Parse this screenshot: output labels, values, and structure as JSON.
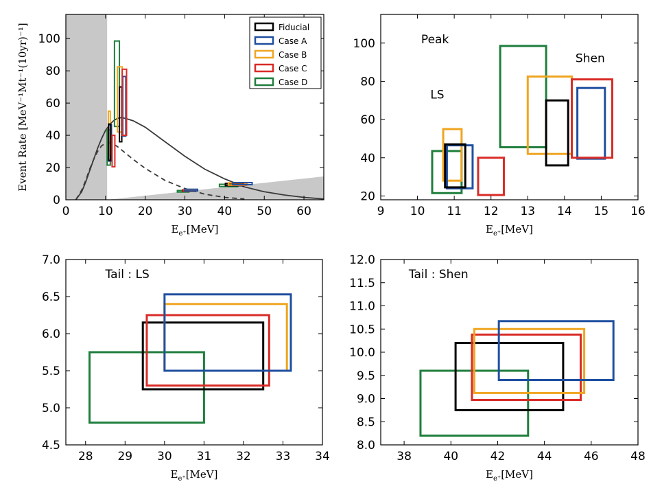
{
  "colors": {
    "Fiducial": "#000000",
    "Case A": "#1f4fa0",
    "Case B": "#f0a520",
    "Case C": "#d92b26",
    "Case D": "#1e7e3c",
    "shade": "#c8c8c8"
  },
  "chart_data": [
    {
      "id": "spectrum",
      "type": "line",
      "xlabel": "E_{e⁺}[MeV]",
      "ylabel": "Event Rate [MeV⁻¹Mt⁻¹(10yr)⁻¹]",
      "xlim": [
        0,
        65
      ],
      "ylim": [
        0,
        115
      ],
      "xticks": [
        0,
        10,
        20,
        30,
        40,
        50,
        60
      ],
      "yticks": [
        0,
        20,
        40,
        60,
        80,
        100
      ],
      "legend_position": "top-right",
      "legend": [
        "Fiducial",
        "Case A",
        "Case B",
        "Case C",
        "Case D"
      ],
      "shaded_regions": [
        {
          "x": [
            0,
            10.4
          ],
          "y_top": [
            115,
            115
          ]
        },
        {
          "x": [
            10.4,
            65
          ],
          "y_top": [
            0,
            14.5
          ]
        }
      ],
      "series": [
        {
          "style": "solid",
          "x": [
            2.5,
            4,
            5,
            6,
            7,
            8,
            9,
            10,
            11,
            12,
            13,
            14,
            15,
            17,
            20,
            25,
            30,
            35,
            40,
            45,
            50,
            55,
            60,
            65
          ],
          "y": [
            0,
            5,
            11,
            18,
            25,
            32,
            38,
            43,
            46.5,
            49,
            50.5,
            51,
            50.5,
            49,
            45,
            36,
            27,
            19,
            13,
            8,
            5,
            3,
            1.5,
            0.5
          ]
        },
        {
          "style": "dashed",
          "x": [
            2.5,
            4,
            5,
            6,
            7,
            8,
            9,
            10,
            11,
            12,
            13,
            14,
            15,
            17,
            20,
            25,
            30,
            35,
            40,
            45
          ],
          "y": [
            0,
            6,
            12,
            19,
            25,
            30,
            33.5,
            35,
            35.5,
            34.5,
            33,
            31,
            29,
            25,
            19.5,
            12,
            7,
            3.5,
            1.5,
            0.5
          ]
        }
      ],
      "boxes": [
        {
          "case": "Case D",
          "x": [
            10.4,
            11.2
          ],
          "y": [
            21.5,
            43.5
          ]
        },
        {
          "case": "Case B",
          "x": [
            10.7,
            11.2
          ],
          "y": [
            28,
            55
          ]
        },
        {
          "case": "Case A",
          "x": [
            10.8,
            11.5
          ],
          "y": [
            24,
            46.5
          ]
        },
        {
          "case": "Fiducial",
          "x": [
            10.75,
            11.3
          ],
          "y": [
            24.5,
            47
          ]
        },
        {
          "case": "Case C",
          "x": [
            11.65,
            12.35
          ],
          "y": [
            20.5,
            40
          ]
        },
        {
          "case": "Case D",
          "x": [
            12.25,
            13.5
          ],
          "y": [
            45.5,
            98.5
          ]
        },
        {
          "case": "Case B",
          "x": [
            13,
            14.2
          ],
          "y": [
            42,
            82.5
          ]
        },
        {
          "case": "Fiducial",
          "x": [
            13.5,
            14.1
          ],
          "y": [
            36,
            70
          ]
        },
        {
          "case": "Case A",
          "x": [
            14.35,
            15.1
          ],
          "y": [
            39.5,
            76.5
          ]
        },
        {
          "case": "Case C",
          "x": [
            14.2,
            15.3
          ],
          "y": [
            40,
            81
          ]
        },
        {
          "case": "Case D",
          "x": [
            28.1,
            31
          ],
          "y": [
            4.8,
            5.75
          ]
        },
        {
          "case": "Fiducial",
          "x": [
            29.45,
            32.5
          ],
          "y": [
            5.25,
            6.15
          ]
        },
        {
          "case": "Case C",
          "x": [
            29.55,
            32.65
          ],
          "y": [
            5.3,
            6.25
          ]
        },
        {
          "case": "Case B",
          "x": [
            30,
            33.1
          ],
          "y": [
            5.5,
            6.4
          ]
        },
        {
          "case": "Case A",
          "x": [
            30,
            33.2
          ],
          "y": [
            5.5,
            6.53
          ]
        },
        {
          "case": "Case D",
          "x": [
            38.7,
            43.3
          ],
          "y": [
            8.2,
            9.6
          ]
        },
        {
          "case": "Fiducial",
          "x": [
            40.2,
            44.8
          ],
          "y": [
            8.75,
            10.2
          ]
        },
        {
          "case": "Case C",
          "x": [
            40.9,
            45.55
          ],
          "y": [
            8.97,
            10.38
          ]
        },
        {
          "case": "Case B",
          "x": [
            41,
            45.7
          ],
          "y": [
            9.12,
            10.5
          ]
        },
        {
          "case": "Case A",
          "x": [
            42.05,
            46.95
          ],
          "y": [
            9.4,
            10.67
          ]
        }
      ]
    },
    {
      "id": "peak",
      "type": "rectangles",
      "xlabel": "E_{e⁺}[MeV]",
      "xlim": [
        9,
        16
      ],
      "ylim": [
        18,
        115
      ],
      "xticks": [
        9,
        10,
        11,
        12,
        13,
        14,
        15,
        16
      ],
      "yticks": [
        20,
        40,
        60,
        80,
        100
      ],
      "annotations": [
        {
          "text": "Peak",
          "x": 10.1,
          "y": 100
        },
        {
          "text": "Shen",
          "x": 14.3,
          "y": 90
        },
        {
          "text": "LS",
          "x": 10.35,
          "y": 71
        }
      ],
      "boxes": [
        {
          "case": "Case D",
          "x": [
            10.4,
            11.2
          ],
          "y": [
            21.5,
            43.5
          ]
        },
        {
          "case": "Case B",
          "x": [
            10.7,
            11.2
          ],
          "y": [
            28,
            55
          ]
        },
        {
          "case": "Case A",
          "x": [
            10.8,
            11.5
          ],
          "y": [
            24,
            46.5
          ]
        },
        {
          "case": "Fiducial",
          "x": [
            10.75,
            11.3
          ],
          "y": [
            24.5,
            47
          ]
        },
        {
          "case": "Case C",
          "x": [
            11.65,
            12.35
          ],
          "y": [
            20.5,
            40
          ]
        },
        {
          "case": "Case D",
          "x": [
            12.25,
            13.5
          ],
          "y": [
            45.5,
            98.5
          ]
        },
        {
          "case": "Case B",
          "x": [
            13,
            14.2
          ],
          "y": [
            42,
            82.5
          ]
        },
        {
          "case": "Fiducial",
          "x": [
            13.5,
            14.1
          ],
          "y": [
            36,
            70
          ]
        },
        {
          "case": "Case A",
          "x": [
            14.35,
            15.1
          ],
          "y": [
            39.5,
            76.5
          ]
        },
        {
          "case": "Case C",
          "x": [
            14.2,
            15.3
          ],
          "y": [
            40,
            81
          ]
        }
      ]
    },
    {
      "id": "tail-ls",
      "type": "rectangles",
      "xlabel": "E_{e⁺}[MeV]",
      "xlim": [
        27.5,
        34
      ],
      "ylim": [
        4.5,
        7.0
      ],
      "xticks": [
        28,
        29,
        30,
        31,
        32,
        33,
        34
      ],
      "yticks": [
        4.5,
        5.0,
        5.5,
        6.0,
        6.5,
        7.0
      ],
      "annotations": [
        {
          "text": "Tail : LS",
          "x": 28.5,
          "y": 6.75
        }
      ],
      "boxes": [
        {
          "case": "Case D",
          "x": [
            28.1,
            31
          ],
          "y": [
            4.8,
            5.75
          ]
        },
        {
          "case": "Fiducial",
          "x": [
            29.45,
            32.5
          ],
          "y": [
            5.25,
            6.15
          ]
        },
        {
          "case": "Case C",
          "x": [
            29.55,
            32.65
          ],
          "y": [
            5.3,
            6.25
          ]
        },
        {
          "case": "Case B",
          "x": [
            30,
            33.1
          ],
          "y": [
            5.5,
            6.4
          ]
        },
        {
          "case": "Case A",
          "x": [
            30,
            33.2
          ],
          "y": [
            5.5,
            6.53
          ]
        }
      ]
    },
    {
      "id": "tail-shen",
      "type": "rectangles",
      "xlabel": "E_{e⁺}[MeV]",
      "xlim": [
        37,
        48
      ],
      "ylim": [
        8.0,
        12.0
      ],
      "xticks": [
        38,
        40,
        42,
        44,
        46,
        48
      ],
      "yticks": [
        8.0,
        8.5,
        9.0,
        9.5,
        10.0,
        10.5,
        11.0,
        11.5,
        12.0
      ],
      "annotations": [
        {
          "text": "Tail : Shen",
          "x": 38.2,
          "y": 11.6
        }
      ],
      "boxes": [
        {
          "case": "Case D",
          "x": [
            38.7,
            43.3
          ],
          "y": [
            8.2,
            9.6
          ]
        },
        {
          "case": "Fiducial",
          "x": [
            40.2,
            44.8
          ],
          "y": [
            8.75,
            10.2
          ]
        },
        {
          "case": "Case C",
          "x": [
            40.9,
            45.55
          ],
          "y": [
            8.97,
            10.38
          ]
        },
        {
          "case": "Case B",
          "x": [
            41,
            45.7
          ],
          "y": [
            9.12,
            10.5
          ]
        },
        {
          "case": "Case A",
          "x": [
            42.05,
            46.95
          ],
          "y": [
            9.4,
            10.67
          ]
        }
      ]
    }
  ]
}
